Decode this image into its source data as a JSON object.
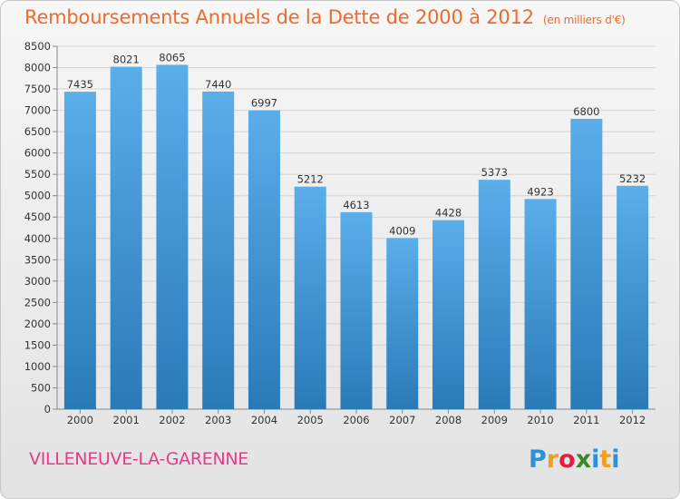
{
  "header": {
    "title": "Remboursements Annuels de la Dette de 2000 à 2012",
    "subtitle": "(en milliers d'€)"
  },
  "footer": {
    "commune": "VILLENEUVE-LA-GARENNE"
  },
  "logo": {
    "text": "Proxiti",
    "letters": [
      "P",
      "r",
      "o",
      "x",
      "i",
      "t",
      "i"
    ],
    "colors": [
      "#2f8fd8",
      "#f0a020",
      "#e02040",
      "#3a8a2a",
      "#2f8fd8",
      "#f0a020",
      "#2f8fd8"
    ]
  },
  "colors": {
    "title": "#f06a2a",
    "commune": "#e83a86",
    "bar_top": "#5aaeea",
    "bar_bottom": "#2a7ab8"
  },
  "chart_data": {
    "type": "bar",
    "categories": [
      "2000",
      "2001",
      "2002",
      "2003",
      "2004",
      "2005",
      "2006",
      "2007",
      "2008",
      "2009",
      "2010",
      "2011",
      "2012"
    ],
    "values": [
      7435,
      8021,
      8065,
      7440,
      6997,
      5212,
      4613,
      4009,
      4428,
      5373,
      4923,
      6800,
      5232
    ],
    "data_labels": [
      "7435",
      "8021",
      "8065",
      "7440",
      "6997",
      "5212",
      "4613",
      "4009",
      "4428",
      "5373",
      "4923",
      "6800",
      "5232"
    ],
    "ylim": [
      0,
      8500
    ],
    "yticks": [
      0,
      500,
      1000,
      1500,
      2000,
      2500,
      3000,
      3500,
      4000,
      4500,
      5000,
      5500,
      6000,
      6500,
      7000,
      7500,
      8000,
      8500
    ],
    "grid": true,
    "legend": "none"
  }
}
